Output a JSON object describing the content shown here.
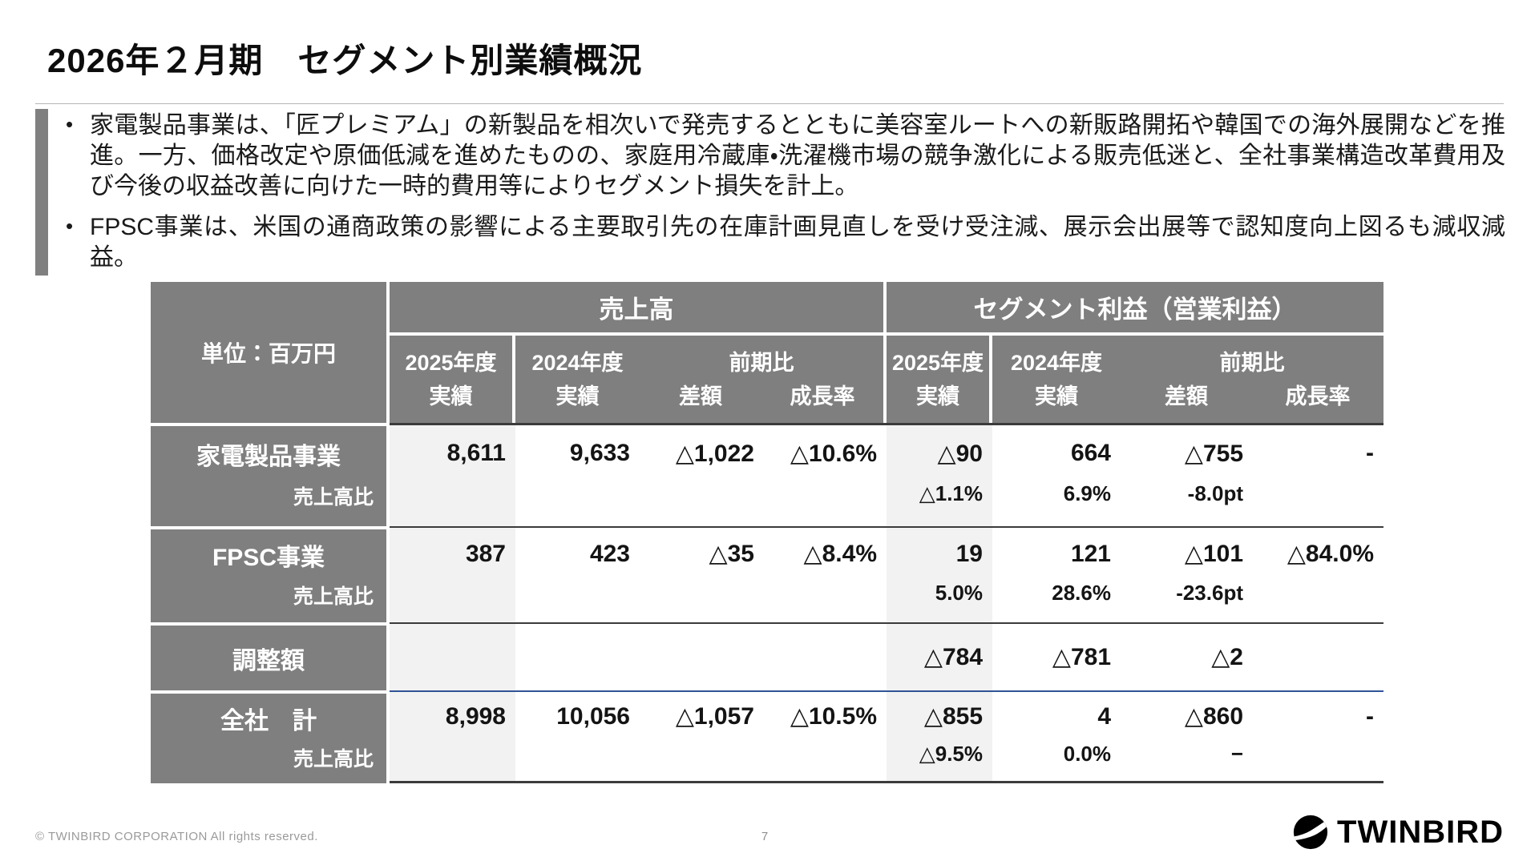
{
  "slide": {
    "title": "2026年２月期　セグメント別業績概況",
    "bullet_marker": "•",
    "bullets": [
      "家電製品事業は、「匠プレミアム」の新製品を相次いで発売するとともに美容室ルートへの新販路開拓や韓国での海外展開などを推進。一方、価格改定や原価低減を進めたものの、家庭用冷蔵庫・洗濯機市場の競争激化による販売低迷と、全社事業構造改革費用及び今後の収益改善に向けた一時的費用等によりセグメント損失を計上。",
      "FPSC事業は、米国の通商政策の影響による主要取引先の在庫計画見直しを受け受注減、展示会出展等で認知度向上図るも減収減益。"
    ]
  },
  "table": {
    "unit_label": "単位：百万円",
    "sales_group": "売上高",
    "profit_group": "セグメント利益（営業利益）",
    "cols": {
      "fy2025": "2025年度",
      "fy2024": "2024年度",
      "actual": "実績",
      "prev": "前期比",
      "diff": "差額",
      "growth": "成長率"
    },
    "rows": [
      {
        "label": "家電製品事業",
        "sublabel": "売上高比",
        "values": [
          "8,611",
          "9,633",
          "△1,022",
          "△10.6%",
          "△90",
          "664",
          "△755",
          "-"
        ],
        "subvalues": [
          "",
          "",
          "",
          "",
          "△1.1%",
          "6.9%",
          "-8.0pt",
          ""
        ]
      },
      {
        "label": "FPSC事業",
        "sublabel": "売上高比",
        "values": [
          "387",
          "423",
          "△35",
          "△8.4%",
          "19",
          "121",
          "△101",
          "△84.0%"
        ],
        "subvalues": [
          "",
          "",
          "",
          "",
          "5.0%",
          "28.6%",
          "-23.6pt",
          ""
        ]
      },
      {
        "label": "調整額",
        "sublabel": "",
        "values": [
          "",
          "",
          "",
          "",
          "△784",
          "△781",
          "△2",
          ""
        ],
        "subvalues": [
          "",
          "",
          "",
          "",
          "",
          "",
          "",
          ""
        ]
      },
      {
        "label": "全社　計",
        "sublabel": "売上高比",
        "values": [
          "8,998",
          "10,056",
          "△1,057",
          "△10.5%",
          "△855",
          "4",
          "△860",
          "-"
        ],
        "subvalues": [
          "",
          "",
          "",
          "",
          "△9.5%",
          "0.0%",
          "−",
          ""
        ]
      }
    ]
  },
  "footer": {
    "copyright": "© TWINBIRD CORPORATION All rights reserved.",
    "page_number": "7",
    "logo_text": "TWINBIRD"
  },
  "colors": {
    "header_gray": "#7f7f7f",
    "tint_column": "#f2f2f2",
    "rule_dark": "#3b3b3b",
    "rule_navy": "#2f5496",
    "accent_bar": "#808080"
  }
}
